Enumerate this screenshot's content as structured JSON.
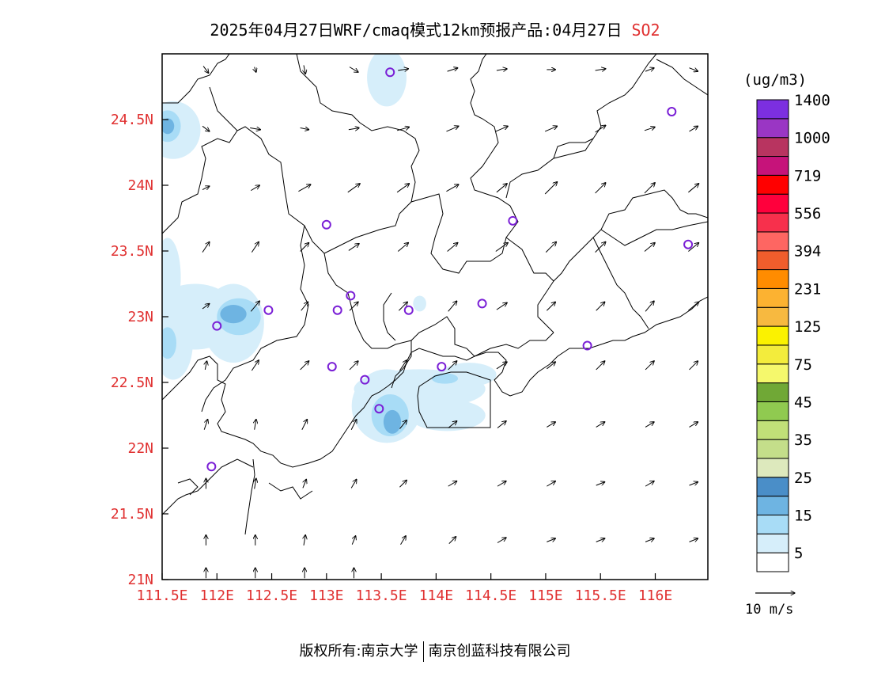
{
  "title": {
    "main": "2025年04月27日WRF/cmaq模式12km预报产品:04月27日",
    "species": "SO2"
  },
  "unit": "(ug/m3)",
  "lat_labels": [
    "24.5N",
    "24N",
    "23.5N",
    "23N",
    "22.5N",
    "22N",
    "21.5N",
    "21N"
  ],
  "lat_values": [
    24.5,
    24.0,
    23.5,
    23.0,
    22.5,
    22.0,
    21.5,
    21.0
  ],
  "lon_labels": [
    "111.5E",
    "112E",
    "112.5E",
    "113E",
    "113.5E",
    "114E",
    "114.5E",
    "115E",
    "115.5E",
    "116E"
  ],
  "lon_values": [
    111.5,
    112.0,
    112.5,
    113.0,
    113.5,
    114.0,
    114.5,
    115.0,
    115.5,
    116.0
  ],
  "extent": {
    "lon_min": 111.5,
    "lon_max": 116.48,
    "lat_min": 21.0,
    "lat_max": 25.0
  },
  "colorbar": {
    "colors": [
      "#ffffff",
      "#d6eefa",
      "#a8dcf6",
      "#6eb4e2",
      "#4a8ec8",
      "#dde9bd",
      "#c4de8a",
      "#c1e078",
      "#90ca50",
      "#70a836",
      "#f5f86c",
      "#f3ec3c",
      "#fbf200",
      "#f7b940",
      "#fcb231",
      "#ff8c00",
      "#f05d2c",
      "#fe6662",
      "#f7304c",
      "#ff003c",
      "#ff0000",
      "#c6137a",
      "#b83460",
      "#9a36c4",
      "#7c2fe0"
    ],
    "labels": [
      "5",
      "15",
      "25",
      "35",
      "45",
      "75",
      "125",
      "231",
      "394",
      "556",
      "719",
      "1000",
      "1400"
    ]
  },
  "wind_reference": {
    "label": "10 m/s"
  },
  "stations": [
    {
      "lon": 113.58,
      "lat": 24.86
    },
    {
      "lon": 116.15,
      "lat": 24.56
    },
    {
      "lon": 113.0,
      "lat": 23.7
    },
    {
      "lon": 114.7,
      "lat": 23.73
    },
    {
      "lon": 116.3,
      "lat": 23.55
    },
    {
      "lon": 113.22,
      "lat": 23.16
    },
    {
      "lon": 113.1,
      "lat": 23.05
    },
    {
      "lon": 112.47,
      "lat": 23.05
    },
    {
      "lon": 112.0,
      "lat": 22.93
    },
    {
      "lon": 113.75,
      "lat": 23.05
    },
    {
      "lon": 114.42,
      "lat": 23.1
    },
    {
      "lon": 115.38,
      "lat": 22.78
    },
    {
      "lon": 113.05,
      "lat": 22.62
    },
    {
      "lon": 113.35,
      "lat": 22.52
    },
    {
      "lon": 114.05,
      "lat": 22.62
    },
    {
      "lon": 113.48,
      "lat": 22.3
    },
    {
      "lon": 111.95,
      "lat": 21.86
    }
  ],
  "so2_field": [
    {
      "lon": 113.55,
      "lat": 24.82,
      "rx": 0.18,
      "ry": 0.22,
      "level": 1
    },
    {
      "lon": 111.6,
      "lat": 24.42,
      "rx": 0.25,
      "ry": 0.22,
      "level": 1
    },
    {
      "lon": 111.55,
      "lat": 24.45,
      "rx": 0.12,
      "ry": 0.12,
      "level": 2
    },
    {
      "lon": 111.55,
      "lat": 24.45,
      "rx": 0.06,
      "ry": 0.06,
      "level": 3
    },
    {
      "lon": 111.8,
      "lat": 23.0,
      "rx": 0.4,
      "ry": 0.25,
      "level": 1
    },
    {
      "lon": 112.15,
      "lat": 22.95,
      "rx": 0.28,
      "ry": 0.3,
      "level": 1
    },
    {
      "lon": 111.6,
      "lat": 22.8,
      "rx": 0.18,
      "ry": 0.28,
      "level": 1
    },
    {
      "lon": 111.55,
      "lat": 23.3,
      "rx": 0.12,
      "ry": 0.3,
      "level": 1
    },
    {
      "lon": 112.2,
      "lat": 23.0,
      "rx": 0.2,
      "ry": 0.14,
      "level": 2
    },
    {
      "lon": 112.15,
      "lat": 23.02,
      "rx": 0.12,
      "ry": 0.07,
      "level": 3
    },
    {
      "lon": 111.55,
      "lat": 22.8,
      "rx": 0.08,
      "ry": 0.12,
      "level": 2
    },
    {
      "lon": 113.55,
      "lat": 22.32,
      "rx": 0.32,
      "ry": 0.28,
      "level": 1
    },
    {
      "lon": 113.85,
      "lat": 22.45,
      "rx": 0.6,
      "ry": 0.15,
      "level": 1
    },
    {
      "lon": 114.1,
      "lat": 22.25,
      "rx": 0.35,
      "ry": 0.12,
      "level": 1
    },
    {
      "lon": 114.3,
      "lat": 22.56,
      "rx": 0.25,
      "ry": 0.09,
      "level": 1
    },
    {
      "lon": 113.58,
      "lat": 22.25,
      "rx": 0.17,
      "ry": 0.16,
      "level": 2
    },
    {
      "lon": 113.6,
      "lat": 22.2,
      "rx": 0.08,
      "ry": 0.09,
      "level": 3
    },
    {
      "lon": 114.08,
      "lat": 22.53,
      "rx": 0.12,
      "ry": 0.04,
      "level": 2
    },
    {
      "lon": 113.85,
      "lat": 23.1,
      "rx": 0.06,
      "ry": 0.06,
      "level": 1
    }
  ],
  "wind_vectors": [
    {
      "lon": 111.9,
      "lat": 24.88,
      "u": 0.3,
      "v": -0.4
    },
    {
      "lon": 112.35,
      "lat": 24.88,
      "u": 0.1,
      "v": -0.3
    },
    {
      "lon": 112.8,
      "lat": 24.88,
      "u": 0.1,
      "v": -0.5
    },
    {
      "lon": 113.25,
      "lat": 24.88,
      "u": 0.5,
      "v": -0.3
    },
    {
      "lon": 113.7,
      "lat": 24.88,
      "u": 0.6,
      "v": 0.1
    },
    {
      "lon": 114.15,
      "lat": 24.88,
      "u": 0.6,
      "v": 0.2
    },
    {
      "lon": 114.6,
      "lat": 24.88,
      "u": 0.6,
      "v": 0.1
    },
    {
      "lon": 115.05,
      "lat": 24.88,
      "u": 0.5,
      "v": 0.0
    },
    {
      "lon": 115.5,
      "lat": 24.88,
      "u": 0.6,
      "v": 0.1
    },
    {
      "lon": 115.95,
      "lat": 24.88,
      "u": 0.5,
      "v": 0.2
    },
    {
      "lon": 116.35,
      "lat": 24.88,
      "u": 0.5,
      "v": -0.2
    },
    {
      "lon": 111.9,
      "lat": 24.43,
      "u": 0.4,
      "v": -0.3
    },
    {
      "lon": 112.35,
      "lat": 24.43,
      "u": 0.6,
      "v": -0.1
    },
    {
      "lon": 112.8,
      "lat": 24.43,
      "u": 0.5,
      "v": -0.1
    },
    {
      "lon": 113.25,
      "lat": 24.43,
      "u": 0.6,
      "v": 0.1
    },
    {
      "lon": 113.7,
      "lat": 24.43,
      "u": 0.7,
      "v": 0.2
    },
    {
      "lon": 114.15,
      "lat": 24.43,
      "u": 0.7,
      "v": 0.3
    },
    {
      "lon": 114.6,
      "lat": 24.43,
      "u": 0.7,
      "v": 0.3
    },
    {
      "lon": 115.05,
      "lat": 24.43,
      "u": 0.7,
      "v": 0.3
    },
    {
      "lon": 115.5,
      "lat": 24.43,
      "u": 0.6,
      "v": 0.4
    },
    {
      "lon": 115.95,
      "lat": 24.43,
      "u": 0.6,
      "v": 0.2
    },
    {
      "lon": 116.35,
      "lat": 24.43,
      "u": 0.5,
      "v": 0.3
    },
    {
      "lon": 111.9,
      "lat": 23.98,
      "u": 0.4,
      "v": 0.2
    },
    {
      "lon": 112.35,
      "lat": 23.98,
      "u": 0.5,
      "v": 0.3
    },
    {
      "lon": 112.8,
      "lat": 23.98,
      "u": 0.7,
      "v": 0.4
    },
    {
      "lon": 113.25,
      "lat": 23.98,
      "u": 0.7,
      "v": 0.5
    },
    {
      "lon": 113.7,
      "lat": 23.98,
      "u": 0.7,
      "v": 0.5
    },
    {
      "lon": 114.15,
      "lat": 23.98,
      "u": 0.7,
      "v": 0.4
    },
    {
      "lon": 114.6,
      "lat": 23.98,
      "u": 0.6,
      "v": 0.5
    },
    {
      "lon": 115.05,
      "lat": 23.98,
      "u": 0.7,
      "v": 0.7
    },
    {
      "lon": 115.5,
      "lat": 23.98,
      "u": 0.6,
      "v": 0.6
    },
    {
      "lon": 115.95,
      "lat": 23.98,
      "u": 0.6,
      "v": 0.6
    },
    {
      "lon": 116.35,
      "lat": 23.98,
      "u": 0.6,
      "v": 0.5
    },
    {
      "lon": 111.9,
      "lat": 23.53,
      "u": 0.4,
      "v": 0.6
    },
    {
      "lon": 112.35,
      "lat": 23.53,
      "u": 0.4,
      "v": 0.6
    },
    {
      "lon": 112.8,
      "lat": 23.53,
      "u": 0.5,
      "v": 0.5
    },
    {
      "lon": 113.25,
      "lat": 23.53,
      "u": 0.6,
      "v": 0.4
    },
    {
      "lon": 113.7,
      "lat": 23.53,
      "u": 0.6,
      "v": 0.5
    },
    {
      "lon": 114.15,
      "lat": 23.53,
      "u": 0.6,
      "v": 0.5
    },
    {
      "lon": 114.6,
      "lat": 23.53,
      "u": 0.7,
      "v": 0.5
    },
    {
      "lon": 115.05,
      "lat": 23.53,
      "u": 0.6,
      "v": 0.6
    },
    {
      "lon": 115.5,
      "lat": 23.53,
      "u": 0.6,
      "v": 0.6
    },
    {
      "lon": 115.95,
      "lat": 23.53,
      "u": 0.6,
      "v": 0.5
    },
    {
      "lon": 116.35,
      "lat": 23.53,
      "u": 0.6,
      "v": 0.5
    },
    {
      "lon": 111.9,
      "lat": 23.08,
      "u": 0.4,
      "v": 0.3
    },
    {
      "lon": 112.35,
      "lat": 23.08,
      "u": 0.5,
      "v": 0.6
    },
    {
      "lon": 112.8,
      "lat": 23.08,
      "u": 0.4,
      "v": 0.5
    },
    {
      "lon": 113.25,
      "lat": 23.08,
      "u": 0.5,
      "v": 0.5
    },
    {
      "lon": 113.7,
      "lat": 23.08,
      "u": 0.5,
      "v": 0.5
    },
    {
      "lon": 114.15,
      "lat": 23.08,
      "u": 0.5,
      "v": 0.6
    },
    {
      "lon": 114.6,
      "lat": 23.08,
      "u": 0.6,
      "v": 0.4
    },
    {
      "lon": 115.05,
      "lat": 23.08,
      "u": 0.5,
      "v": 0.5
    },
    {
      "lon": 115.5,
      "lat": 23.08,
      "u": 0.5,
      "v": 0.5
    },
    {
      "lon": 115.95,
      "lat": 23.08,
      "u": 0.5,
      "v": 0.6
    },
    {
      "lon": 116.35,
      "lat": 23.08,
      "u": 0.6,
      "v": 0.5
    },
    {
      "lon": 111.9,
      "lat": 22.63,
      "u": 0.1,
      "v": 0.5
    },
    {
      "lon": 112.35,
      "lat": 22.63,
      "u": 0.4,
      "v": 0.6
    },
    {
      "lon": 112.8,
      "lat": 22.63,
      "u": 0.5,
      "v": 0.5
    },
    {
      "lon": 113.25,
      "lat": 22.63,
      "u": 0.5,
      "v": 0.5
    },
    {
      "lon": 113.7,
      "lat": 22.63,
      "u": 0.4,
      "v": 0.6
    },
    {
      "lon": 114.15,
      "lat": 22.63,
      "u": 0.5,
      "v": 0.5
    },
    {
      "lon": 114.6,
      "lat": 22.63,
      "u": 0.6,
      "v": 0.4
    },
    {
      "lon": 115.05,
      "lat": 22.63,
      "u": 0.5,
      "v": 0.4
    },
    {
      "lon": 115.5,
      "lat": 22.63,
      "u": 0.5,
      "v": 0.5
    },
    {
      "lon": 115.95,
      "lat": 22.63,
      "u": 0.5,
      "v": 0.5
    },
    {
      "lon": 116.35,
      "lat": 22.63,
      "u": 0.5,
      "v": 0.5
    },
    {
      "lon": 111.9,
      "lat": 22.18,
      "u": 0.2,
      "v": 0.6
    },
    {
      "lon": 112.35,
      "lat": 22.18,
      "u": 0.1,
      "v": 0.6
    },
    {
      "lon": 112.8,
      "lat": 22.18,
      "u": 0.3,
      "v": 0.6
    },
    {
      "lon": 113.25,
      "lat": 22.18,
      "u": 0.3,
      "v": 0.6
    },
    {
      "lon": 113.7,
      "lat": 22.18,
      "u": 0.4,
      "v": 0.5
    },
    {
      "lon": 114.15,
      "lat": 22.18,
      "u": 0.5,
      "v": 0.4
    },
    {
      "lon": 114.6,
      "lat": 22.18,
      "u": 0.5,
      "v": 0.4
    },
    {
      "lon": 115.05,
      "lat": 22.18,
      "u": 0.5,
      "v": 0.3
    },
    {
      "lon": 115.5,
      "lat": 22.18,
      "u": 0.5,
      "v": 0.3
    },
    {
      "lon": 115.95,
      "lat": 22.18,
      "u": 0.5,
      "v": 0.3
    },
    {
      "lon": 116.35,
      "lat": 22.18,
      "u": 0.5,
      "v": 0.3
    },
    {
      "lon": 111.9,
      "lat": 21.73,
      "u": 0.0,
      "v": 0.6
    },
    {
      "lon": 112.35,
      "lat": 21.73,
      "u": 0.1,
      "v": 0.6
    },
    {
      "lon": 112.8,
      "lat": 21.73,
      "u": 0.2,
      "v": 0.5
    },
    {
      "lon": 113.25,
      "lat": 21.73,
      "u": 0.3,
      "v": 0.5
    },
    {
      "lon": 113.7,
      "lat": 21.73,
      "u": 0.4,
      "v": 0.4
    },
    {
      "lon": 114.15,
      "lat": 21.73,
      "u": 0.5,
      "v": 0.3
    },
    {
      "lon": 114.6,
      "lat": 21.73,
      "u": 0.5,
      "v": 0.3
    },
    {
      "lon": 115.05,
      "lat": 21.73,
      "u": 0.5,
      "v": 0.3
    },
    {
      "lon": 115.5,
      "lat": 21.73,
      "u": 0.5,
      "v": 0.2
    },
    {
      "lon": 115.95,
      "lat": 21.73,
      "u": 0.5,
      "v": 0.3
    },
    {
      "lon": 116.35,
      "lat": 21.73,
      "u": 0.5,
      "v": 0.2
    },
    {
      "lon": 111.9,
      "lat": 21.3,
      "u": 0.0,
      "v": 0.6
    },
    {
      "lon": 112.35,
      "lat": 21.3,
      "u": 0.0,
      "v": 0.6
    },
    {
      "lon": 112.8,
      "lat": 21.3,
      "u": 0.1,
      "v": 0.6
    },
    {
      "lon": 113.25,
      "lat": 21.3,
      "u": 0.2,
      "v": 0.5
    },
    {
      "lon": 113.7,
      "lat": 21.3,
      "u": 0.3,
      "v": 0.5
    },
    {
      "lon": 114.15,
      "lat": 21.3,
      "u": 0.4,
      "v": 0.4
    },
    {
      "lon": 114.6,
      "lat": 21.3,
      "u": 0.5,
      "v": 0.3
    },
    {
      "lon": 115.05,
      "lat": 21.3,
      "u": 0.5,
      "v": 0.2
    },
    {
      "lon": 115.5,
      "lat": 21.3,
      "u": 0.5,
      "v": 0.2
    },
    {
      "lon": 115.95,
      "lat": 21.3,
      "u": 0.5,
      "v": 0.2
    },
    {
      "lon": 116.35,
      "lat": 21.3,
      "u": 0.5,
      "v": 0.2
    },
    {
      "lon": 111.9,
      "lat": 21.05,
      "u": 0.0,
      "v": 0.6
    },
    {
      "lon": 112.35,
      "lat": 21.05,
      "u": 0.0,
      "v": 0.6
    },
    {
      "lon": 112.8,
      "lat": 21.05,
      "u": 0.0,
      "v": 0.6
    },
    {
      "lon": 113.25,
      "lat": 21.05,
      "u": 0.0,
      "v": 0.6
    }
  ],
  "footer": {
    "left": "版权所有:南京大学",
    "right": "南京创蓝科技有限公司"
  }
}
